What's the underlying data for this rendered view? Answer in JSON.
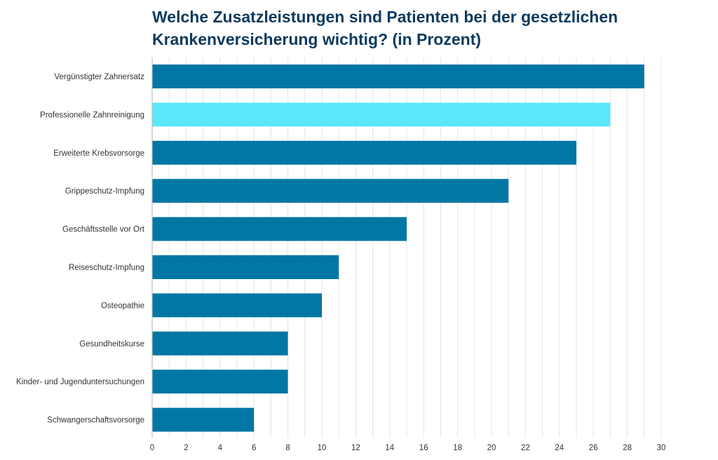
{
  "chart_data": {
    "type": "bar",
    "orientation": "horizontal",
    "title": "Welche Zusatzleistungen sind Patienten bei der gesetzlichen Krankenversicherung wichtig? (in Prozent)",
    "categories": [
      "Vergünstigter Zahnersatz",
      "Professionelle Zahnreinigung",
      "Erweiterte Krebsvorsorge",
      "Grippeschutz-Impfung",
      "Geschäftsstelle vor Ort",
      "Reiseschutz-Impfung",
      "Osteopathie",
      "Gesundheitskurse",
      "Kinder- und Jugenduntersuchungen",
      "Schwangerschaftsvorsorge"
    ],
    "values": [
      29,
      27,
      25,
      21,
      15,
      11,
      10,
      8,
      8,
      6
    ],
    "highlight_index": 1,
    "xlim": [
      0,
      30
    ],
    "xticks": [
      0,
      2,
      4,
      6,
      8,
      10,
      12,
      14,
      16,
      18,
      20,
      22,
      24,
      26,
      28,
      30
    ],
    "grid": true,
    "colors": {
      "bar": "#0277a4",
      "highlight": "#5ce6fc",
      "grid": "#e4e4e4",
      "axis": "#bdbdbd"
    }
  }
}
